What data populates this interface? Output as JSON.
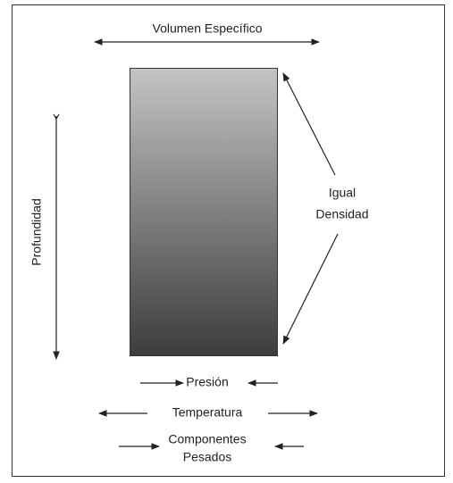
{
  "labels": {
    "volume": "Volumen Específico",
    "depth": "Profundidad",
    "density": [
      "Igual",
      "Densidad"
    ],
    "pressure": "Presión",
    "temperature": "Temperatura",
    "components": [
      "Componentes",
      "Pesados"
    ]
  }
}
